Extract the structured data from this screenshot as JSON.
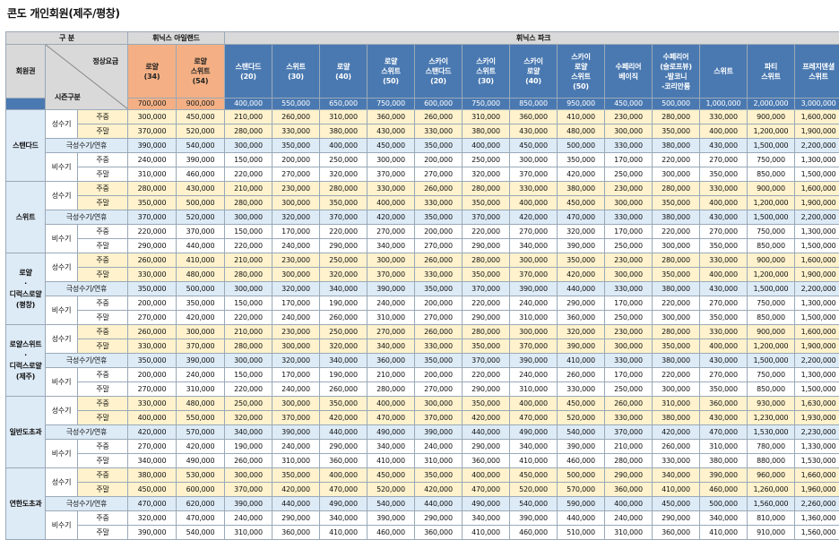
{
  "title": "콘도 개인회원(제주/평창)",
  "header": {
    "gubun": "구    분",
    "island": "휘닉스 아일랜드",
    "park": "휘닉스 파크",
    "membership": "회원권",
    "normal_rate": "정상요금",
    "season": "시즌구분"
  },
  "columns": [
    {
      "label": "로얄\n(34)",
      "price": "700,000"
    },
    {
      "label": "로얄\n스위트\n(54)",
      "price": "900,000"
    },
    {
      "label": "스탠다드\n(20)",
      "price": "400,000"
    },
    {
      "label": "스위트\n(30)",
      "price": "550,000"
    },
    {
      "label": "로얄\n(40)",
      "price": "650,000"
    },
    {
      "label": "로얄\n스위트\n(50)",
      "price": "750,000"
    },
    {
      "label": "스카이\n스탠다드\n(20)",
      "price": "600,000"
    },
    {
      "label": "스카이\n스위트\n(30)",
      "price": "750,000"
    },
    {
      "label": "스카이\n로얄\n(40)",
      "price": "850,000"
    },
    {
      "label": "스카이\n로얄\n스위트\n(50)",
      "price": "950,000"
    },
    {
      "label": "수페리어\n베이직",
      "price": "450,000"
    },
    {
      "label": "수페리어\n(슬로프뷰)\n-발코니\n-코리안룸",
      "price": "500,000"
    },
    {
      "label": "스위트",
      "price": "1,000,000"
    },
    {
      "label": "파티\n스위트",
      "price": "2,000,000"
    },
    {
      "label": "프레지덴셜\n스위트",
      "price": "3,000,000"
    }
  ],
  "season_labels": {
    "peak": "성수기",
    "super_peak": "극성수기/연휴",
    "off": "비수기",
    "weekday": "주중",
    "weekend": "주말"
  },
  "groups": [
    {
      "name": "스탠다드",
      "rows": [
        [
          "300,000",
          "450,000",
          "210,000",
          "260,000",
          "310,000",
          "360,000",
          "260,000",
          "310,000",
          "360,000",
          "410,000",
          "230,000",
          "280,000",
          "330,000",
          "900,000",
          "1,600,000"
        ],
        [
          "370,000",
          "520,000",
          "280,000",
          "330,000",
          "380,000",
          "430,000",
          "330,000",
          "380,000",
          "430,000",
          "480,000",
          "300,000",
          "350,000",
          "400,000",
          "1,200,000",
          "1,900,000"
        ],
        [
          "390,000",
          "540,000",
          "300,000",
          "350,000",
          "400,000",
          "450,000",
          "350,000",
          "400,000",
          "450,000",
          "500,000",
          "330,000",
          "380,000",
          "430,000",
          "1,500,000",
          "2,200,000"
        ],
        [
          "240,000",
          "390,000",
          "150,000",
          "200,000",
          "250,000",
          "300,000",
          "200,000",
          "250,000",
          "300,000",
          "350,000",
          "170,000",
          "220,000",
          "270,000",
          "750,000",
          "1,300,000"
        ],
        [
          "310,000",
          "460,000",
          "220,000",
          "270,000",
          "320,000",
          "370,000",
          "270,000",
          "320,000",
          "370,000",
          "420,000",
          "250,000",
          "300,000",
          "350,000",
          "850,000",
          "1,500,000"
        ]
      ]
    },
    {
      "name": "스위트",
      "rows": [
        [
          "280,000",
          "430,000",
          "210,000",
          "230,000",
          "280,000",
          "330,000",
          "260,000",
          "280,000",
          "330,000",
          "380,000",
          "230,000",
          "280,000",
          "330,000",
          "900,000",
          "1,600,000"
        ],
        [
          "350,000",
          "500,000",
          "280,000",
          "300,000",
          "350,000",
          "400,000",
          "330,000",
          "350,000",
          "400,000",
          "450,000",
          "300,000",
          "350,000",
          "400,000",
          "1,200,000",
          "1,900,000"
        ],
        [
          "370,000",
          "520,000",
          "300,000",
          "320,000",
          "370,000",
          "420,000",
          "350,000",
          "370,000",
          "420,000",
          "470,000",
          "330,000",
          "380,000",
          "430,000",
          "1,500,000",
          "2,200,000"
        ],
        [
          "220,000",
          "370,000",
          "150,000",
          "170,000",
          "220,000",
          "270,000",
          "200,000",
          "220,000",
          "270,000",
          "320,000",
          "170,000",
          "220,000",
          "270,000",
          "750,000",
          "1,300,000"
        ],
        [
          "290,000",
          "440,000",
          "220,000",
          "240,000",
          "290,000",
          "340,000",
          "270,000",
          "290,000",
          "340,000",
          "390,000",
          "250,000",
          "300,000",
          "350,000",
          "850,000",
          "1,500,000"
        ]
      ]
    },
    {
      "name": "로얄\n·\n디럭스로얄\n(평창)",
      "rows": [
        [
          "260,000",
          "410,000",
          "210,000",
          "230,000",
          "250,000",
          "300,000",
          "260,000",
          "280,000",
          "300,000",
          "350,000",
          "230,000",
          "280,000",
          "330,000",
          "900,000",
          "1,600,000"
        ],
        [
          "330,000",
          "480,000",
          "280,000",
          "300,000",
          "320,000",
          "370,000",
          "330,000",
          "350,000",
          "370,000",
          "420,000",
          "300,000",
          "350,000",
          "400,000",
          "1,200,000",
          "1,900,000"
        ],
        [
          "350,000",
          "500,000",
          "300,000",
          "320,000",
          "340,000",
          "390,000",
          "350,000",
          "370,000",
          "390,000",
          "440,000",
          "330,000",
          "380,000",
          "430,000",
          "1,500,000",
          "2,200,000"
        ],
        [
          "200,000",
          "350,000",
          "150,000",
          "170,000",
          "190,000",
          "240,000",
          "200,000",
          "220,000",
          "240,000",
          "290,000",
          "170,000",
          "220,000",
          "270,000",
          "750,000",
          "1,300,000"
        ],
        [
          "270,000",
          "420,000",
          "220,000",
          "240,000",
          "260,000",
          "310,000",
          "270,000",
          "290,000",
          "310,000",
          "360,000",
          "250,000",
          "300,000",
          "350,000",
          "850,000",
          "1,500,000"
        ]
      ]
    },
    {
      "name": "로얄스위트\n·\n디럭스로얄\n(제주)",
      "rows": [
        [
          "260,000",
          "300,000",
          "210,000",
          "230,000",
          "250,000",
          "270,000",
          "260,000",
          "280,000",
          "300,000",
          "320,000",
          "230,000",
          "280,000",
          "330,000",
          "900,000",
          "1,600,000"
        ],
        [
          "330,000",
          "370,000",
          "280,000",
          "300,000",
          "320,000",
          "340,000",
          "330,000",
          "350,000",
          "370,000",
          "390,000",
          "300,000",
          "350,000",
          "400,000",
          "1,200,000",
          "1,900,000"
        ],
        [
          "350,000",
          "390,000",
          "300,000",
          "320,000",
          "340,000",
          "360,000",
          "350,000",
          "370,000",
          "390,000",
          "410,000",
          "330,000",
          "380,000",
          "430,000",
          "1,500,000",
          "2,200,000"
        ],
        [
          "200,000",
          "240,000",
          "150,000",
          "170,000",
          "190,000",
          "210,000",
          "200,000",
          "220,000",
          "240,000",
          "260,000",
          "170,000",
          "220,000",
          "270,000",
          "750,000",
          "1,300,000"
        ],
        [
          "270,000",
          "310,000",
          "220,000",
          "240,000",
          "260,000",
          "280,000",
          "270,000",
          "290,000",
          "310,000",
          "330,000",
          "250,000",
          "300,000",
          "350,000",
          "850,000",
          "1,500,000"
        ]
      ]
    },
    {
      "name": "일반도초과",
      "rows": [
        [
          "330,000",
          "480,000",
          "250,000",
          "300,000",
          "350,000",
          "400,000",
          "300,000",
          "350,000",
          "400,000",
          "450,000",
          "260,000",
          "310,000",
          "360,000",
          "930,000",
          "1,630,000"
        ],
        [
          "400,000",
          "550,000",
          "320,000",
          "370,000",
          "420,000",
          "470,000",
          "370,000",
          "420,000",
          "470,000",
          "520,000",
          "330,000",
          "380,000",
          "430,000",
          "1,230,000",
          "1,930,000"
        ],
        [
          "420,000",
          "570,000",
          "340,000",
          "390,000",
          "440,000",
          "490,000",
          "390,000",
          "440,000",
          "490,000",
          "540,000",
          "370,000",
          "420,000",
          "470,000",
          "1,530,000",
          "2,230,000"
        ],
        [
          "270,000",
          "420,000",
          "190,000",
          "240,000",
          "290,000",
          "340,000",
          "240,000",
          "290,000",
          "340,000",
          "390,000",
          "210,000",
          "260,000",
          "310,000",
          "780,000",
          "1,330,000"
        ],
        [
          "340,000",
          "490,000",
          "260,000",
          "310,000",
          "360,000",
          "410,000",
          "310,000",
          "360,000",
          "410,000",
          "460,000",
          "280,000",
          "330,000",
          "380,000",
          "880,000",
          "1,530,000"
        ]
      ]
    },
    {
      "name": "연한도초과",
      "rows": [
        [
          "380,000",
          "530,000",
          "300,000",
          "350,000",
          "400,000",
          "450,000",
          "350,000",
          "400,000",
          "450,000",
          "500,000",
          "290,000",
          "340,000",
          "390,000",
          "960,000",
          "1,660,000"
        ],
        [
          "450,000",
          "600,000",
          "370,000",
          "420,000",
          "470,000",
          "520,000",
          "420,000",
          "470,000",
          "520,000",
          "570,000",
          "360,000",
          "410,000",
          "460,000",
          "1,260,000",
          "1,960,000"
        ],
        [
          "470,000",
          "620,000",
          "390,000",
          "440,000",
          "490,000",
          "540,000",
          "440,000",
          "490,000",
          "540,000",
          "590,000",
          "400,000",
          "450,000",
          "500,000",
          "1,560,000",
          "2,260,000"
        ],
        [
          "320,000",
          "470,000",
          "240,000",
          "290,000",
          "340,000",
          "390,000",
          "290,000",
          "340,000",
          "390,000",
          "440,000",
          "240,000",
          "290,000",
          "340,000",
          "810,000",
          "1,360,000"
        ],
        [
          "390,000",
          "540,000",
          "310,000",
          "360,000",
          "410,000",
          "460,000",
          "360,000",
          "410,000",
          "460,000",
          "510,000",
          "310,000",
          "360,000",
          "410,000",
          "910,000",
          "1,560,000"
        ]
      ]
    }
  ]
}
